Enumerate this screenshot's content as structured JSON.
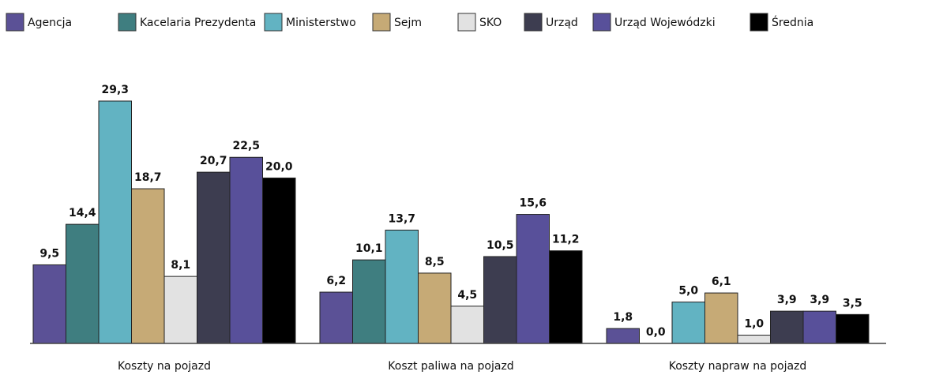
{
  "chart_data": {
    "type": "bar",
    "categories": [
      "Koszty na pojazd",
      "Koszt paliwa na pojazd",
      "Koszty napraw na pojazd"
    ],
    "series": [
      {
        "name": "Agencja",
        "color": "#5b5196",
        "values": [
          9.5,
          6.2,
          1.8
        ],
        "value_labels": [
          "9,5",
          "6,2",
          "1,8"
        ]
      },
      {
        "name": "Kacelaria Prezydenta",
        "color": "#3f7e80",
        "values": [
          14.4,
          10.1,
          0.0
        ],
        "value_labels": [
          "14,4",
          "10,1",
          "0,0"
        ]
      },
      {
        "name": "Ministerstwo",
        "color": "#62b3c2",
        "values": [
          29.3,
          13.7,
          5.0
        ],
        "value_labels": [
          "29,3",
          "13,7",
          "5,0"
        ]
      },
      {
        "name": "Sejm",
        "color": "#c6aa76",
        "values": [
          18.7,
          8.5,
          6.1
        ],
        "value_labels": [
          "18,7",
          "8,5",
          "6,1"
        ]
      },
      {
        "name": "SKO",
        "color": "#e2e2e2",
        "values": [
          8.1,
          4.5,
          1.0
        ],
        "value_labels": [
          "8,1",
          "4,5",
          "1,0"
        ]
      },
      {
        "name": "Urząd",
        "color": "#3d3d50",
        "values": [
          20.7,
          10.5,
          3.9
        ],
        "value_labels": [
          "20,7",
          "10,5",
          "3,9"
        ]
      },
      {
        "name": "Urząd Wojewódzki",
        "color": "#58509a",
        "values": [
          22.5,
          15.6,
          3.9
        ],
        "value_labels": [
          "22,5",
          "15,6",
          "3,9"
        ]
      },
      {
        "name": "Średnia",
        "color": "#000000",
        "values": [
          20.0,
          11.2,
          3.5
        ],
        "value_labels": [
          "20,0",
          "11,2",
          "3,5"
        ]
      }
    ]
  }
}
